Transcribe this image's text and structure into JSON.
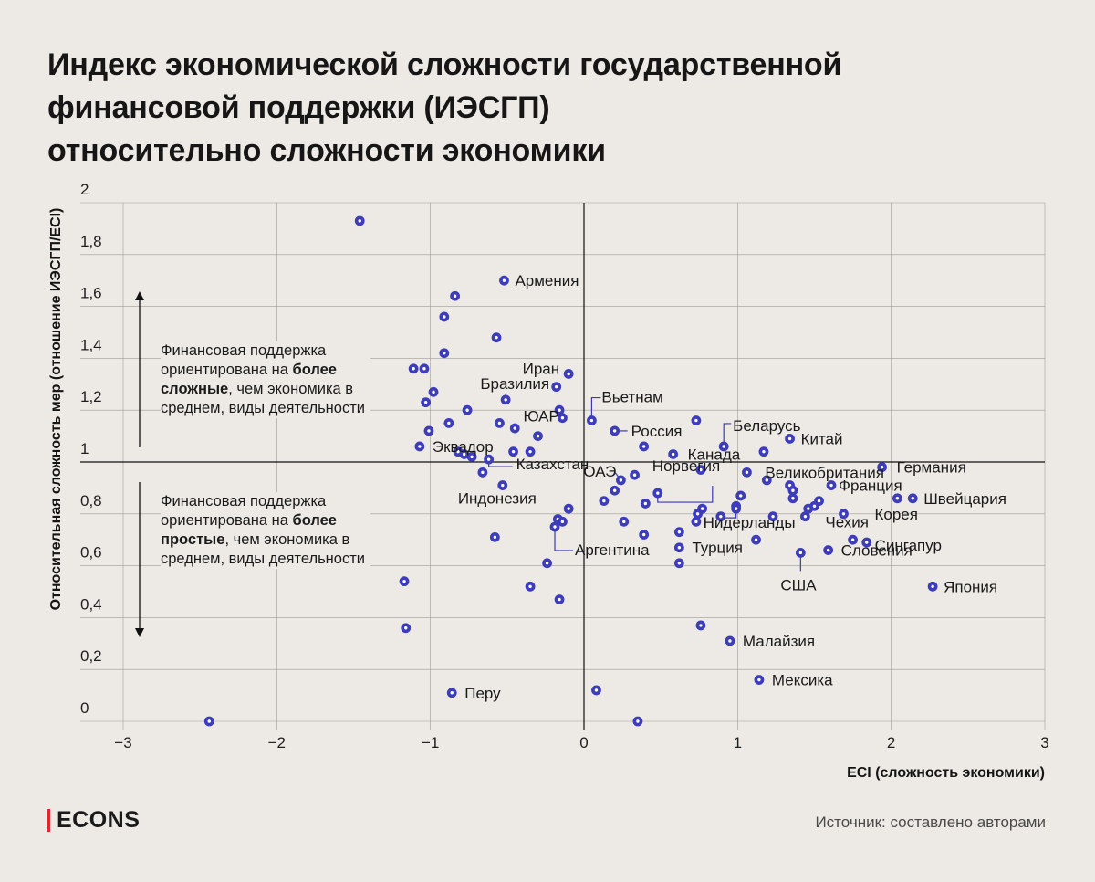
{
  "title_lines": [
    "Индекс экономической сложности государственной",
    "финансовой поддержки (ИЭСГП)",
    "относительно сложности экономики"
  ],
  "annotations": {
    "up_text_pre": "Финансовая поддержка ориентирована на ",
    "up_text_bold": "более сложные",
    "up_text_post": ", чем экономика в среднем, виды деятельности",
    "down_text_pre": "Финансовая поддержка ориентирована на ",
    "down_text_bold": "более простые",
    "down_text_post": ", чем экономика в среднем, виды деятельности"
  },
  "footer": {
    "logo": "ECONS",
    "source": "Источник: составлено авторами"
  },
  "colors": {
    "background": "#edeae5",
    "dot": "#3d3cba",
    "brand_red": "#e3262e"
  },
  "chart_data": {
    "type": "scatter",
    "title": "Индекс экономической сложности государственной финансовой поддержки (ИЭСГП) относительно сложности экономики",
    "xlabel": "ECI (сложность экономики)",
    "ylabel": "Относительная сложность мер (отношение ИЭСГП/ECI)",
    "xlim": [
      -3,
      3
    ],
    "ylim": [
      0,
      2
    ],
    "xticks": [
      -3,
      -2,
      -1,
      0,
      1,
      2,
      3
    ],
    "xtick_labels": [
      "−3",
      "−2",
      "−1",
      "0",
      "1",
      "2",
      "3"
    ],
    "yticks": [
      0,
      0.2,
      0.4,
      0.6,
      0.8,
      1,
      1.2,
      1.4,
      1.6,
      1.8,
      2
    ],
    "ytick_labels": [
      "0",
      "0,2",
      "0,4",
      "0,6",
      "0,8",
      "1",
      "1,2",
      "1,4",
      "1,6",
      "1,8",
      "2"
    ],
    "grid": true,
    "points": [
      {
        "x": -1.46,
        "y": 1.93,
        "label": ""
      },
      {
        "x": -0.52,
        "y": 1.7,
        "label": "Армения"
      },
      {
        "x": -0.84,
        "y": 1.64,
        "label": ""
      },
      {
        "x": -0.91,
        "y": 1.56,
        "label": ""
      },
      {
        "x": -0.57,
        "y": 1.48,
        "label": ""
      },
      {
        "x": -0.91,
        "y": 1.42,
        "label": ""
      },
      {
        "x": -1.11,
        "y": 1.36,
        "label": ""
      },
      {
        "x": -1.04,
        "y": 1.36,
        "label": ""
      },
      {
        "x": -0.1,
        "y": 1.34,
        "label": "Иран"
      },
      {
        "x": -0.18,
        "y": 1.29,
        "label": ""
      },
      {
        "x": -0.98,
        "y": 1.27,
        "label": ""
      },
      {
        "x": -1.03,
        "y": 1.23,
        "label": ""
      },
      {
        "x": -0.51,
        "y": 1.24,
        "label": "Бразилия"
      },
      {
        "x": -0.76,
        "y": 1.2,
        "label": ""
      },
      {
        "x": -0.16,
        "y": 1.2,
        "label": ""
      },
      {
        "x": -0.14,
        "y": 1.17,
        "label": ""
      },
      {
        "x": 0.05,
        "y": 1.16,
        "label": "Вьетнам"
      },
      {
        "x": -0.88,
        "y": 1.15,
        "label": ""
      },
      {
        "x": -0.55,
        "y": 1.15,
        "label": ""
      },
      {
        "x": -1.01,
        "y": 1.12,
        "label": ""
      },
      {
        "x": -0.45,
        "y": 1.13,
        "label": ""
      },
      {
        "x": 0.2,
        "y": 1.12,
        "label": "Россия"
      },
      {
        "x": 0.73,
        "y": 1.16,
        "label": ""
      },
      {
        "x": -0.3,
        "y": 1.1,
        "label": "ЮАР"
      },
      {
        "x": 1.34,
        "y": 1.09,
        "label": "Китай"
      },
      {
        "x": -1.07,
        "y": 1.06,
        "label": "Эквадор"
      },
      {
        "x": 0.39,
        "y": 1.06,
        "label": ""
      },
      {
        "x": 0.91,
        "y": 1.06,
        "label": "Беларусь"
      },
      {
        "x": -0.82,
        "y": 1.04,
        "label": ""
      },
      {
        "x": -0.46,
        "y": 1.04,
        "label": ""
      },
      {
        "x": -0.35,
        "y": 1.04,
        "label": ""
      },
      {
        "x": 0.58,
        "y": 1.03,
        "label": "Канада"
      },
      {
        "x": 1.17,
        "y": 1.04,
        "label": ""
      },
      {
        "x": -0.78,
        "y": 1.03,
        "label": ""
      },
      {
        "x": -0.73,
        "y": 1.02,
        "label": ""
      },
      {
        "x": -0.62,
        "y": 1.01,
        "label": "Казахстан"
      },
      {
        "x": 1.94,
        "y": 0.98,
        "label": "Германия"
      },
      {
        "x": 0.76,
        "y": 0.97,
        "label": ""
      },
      {
        "x": 1.06,
        "y": 0.96,
        "label": "Великобритания"
      },
      {
        "x": -0.66,
        "y": 0.96,
        "label": ""
      },
      {
        "x": 0.33,
        "y": 0.95,
        "label": ""
      },
      {
        "x": 0.24,
        "y": 0.93,
        "label": "ОАЭ"
      },
      {
        "x": 1.19,
        "y": 0.93,
        "label": ""
      },
      {
        "x": -0.53,
        "y": 0.91,
        "label": "Индонезия"
      },
      {
        "x": 1.34,
        "y": 0.91,
        "label": ""
      },
      {
        "x": 1.61,
        "y": 0.91,
        "label": "Франция"
      },
      {
        "x": 0.2,
        "y": 0.89,
        "label": ""
      },
      {
        "x": 1.36,
        "y": 0.89,
        "label": ""
      },
      {
        "x": 0.48,
        "y": 0.88,
        "label": "Норвегия"
      },
      {
        "x": 1.02,
        "y": 0.87,
        "label": ""
      },
      {
        "x": 2.04,
        "y": 0.86,
        "label": ""
      },
      {
        "x": 2.14,
        "y": 0.86,
        "label": "Швейцария"
      },
      {
        "x": 0.13,
        "y": 0.85,
        "label": ""
      },
      {
        "x": 1.36,
        "y": 0.86,
        "label": ""
      },
      {
        "x": 0.4,
        "y": 0.84,
        "label": ""
      },
      {
        "x": 1.53,
        "y": 0.85,
        "label": ""
      },
      {
        "x": 0.99,
        "y": 0.83,
        "label": ""
      },
      {
        "x": 1.5,
        "y": 0.83,
        "label": ""
      },
      {
        "x": 1.46,
        "y": 0.82,
        "label": ""
      },
      {
        "x": -0.1,
        "y": 0.82,
        "label": ""
      },
      {
        "x": 0.77,
        "y": 0.82,
        "label": ""
      },
      {
        "x": 0.99,
        "y": 0.82,
        "label": "Нидерланды"
      },
      {
        "x": 0.74,
        "y": 0.8,
        "label": ""
      },
      {
        "x": 1.69,
        "y": 0.8,
        "label": "Корея"
      },
      {
        "x": 0.89,
        "y": 0.79,
        "label": ""
      },
      {
        "x": 1.23,
        "y": 0.79,
        "label": ""
      },
      {
        "x": 1.44,
        "y": 0.79,
        "label": "Чехия"
      },
      {
        "x": -0.17,
        "y": 0.78,
        "label": ""
      },
      {
        "x": -0.14,
        "y": 0.77,
        "label": ""
      },
      {
        "x": 0.26,
        "y": 0.77,
        "label": ""
      },
      {
        "x": 0.73,
        "y": 0.77,
        "label": ""
      },
      {
        "x": -0.19,
        "y": 0.75,
        "label": "Аргентина"
      },
      {
        "x": 0.39,
        "y": 0.72,
        "label": ""
      },
      {
        "x": 0.62,
        "y": 0.73,
        "label": ""
      },
      {
        "x": -0.58,
        "y": 0.71,
        "label": ""
      },
      {
        "x": 1.75,
        "y": 0.7,
        "label": "Сингапур"
      },
      {
        "x": 1.12,
        "y": 0.7,
        "label": ""
      },
      {
        "x": 1.84,
        "y": 0.69,
        "label": ""
      },
      {
        "x": 0.62,
        "y": 0.67,
        "label": "Турция"
      },
      {
        "x": 1.59,
        "y": 0.66,
        "label": "Словения"
      },
      {
        "x": 1.41,
        "y": 0.65,
        "label": "США"
      },
      {
        "x": -0.24,
        "y": 0.61,
        "label": ""
      },
      {
        "x": 0.62,
        "y": 0.61,
        "label": ""
      },
      {
        "x": -1.17,
        "y": 0.54,
        "label": ""
      },
      {
        "x": -0.35,
        "y": 0.52,
        "label": ""
      },
      {
        "x": 2.27,
        "y": 0.52,
        "label": "Япония"
      },
      {
        "x": -0.16,
        "y": 0.47,
        "label": ""
      },
      {
        "x": -1.16,
        "y": 0.36,
        "label": ""
      },
      {
        "x": 0.76,
        "y": 0.37,
        "label": ""
      },
      {
        "x": 0.95,
        "y": 0.31,
        "label": "Малайзия"
      },
      {
        "x": 1.14,
        "y": 0.16,
        "label": "Мексика"
      },
      {
        "x": -0.86,
        "y": 0.11,
        "label": "Перу"
      },
      {
        "x": 0.08,
        "y": 0.12,
        "label": ""
      },
      {
        "x": -2.44,
        "y": 0.0,
        "label": ""
      },
      {
        "x": 0.35,
        "y": 0.0,
        "label": ""
      }
    ]
  }
}
